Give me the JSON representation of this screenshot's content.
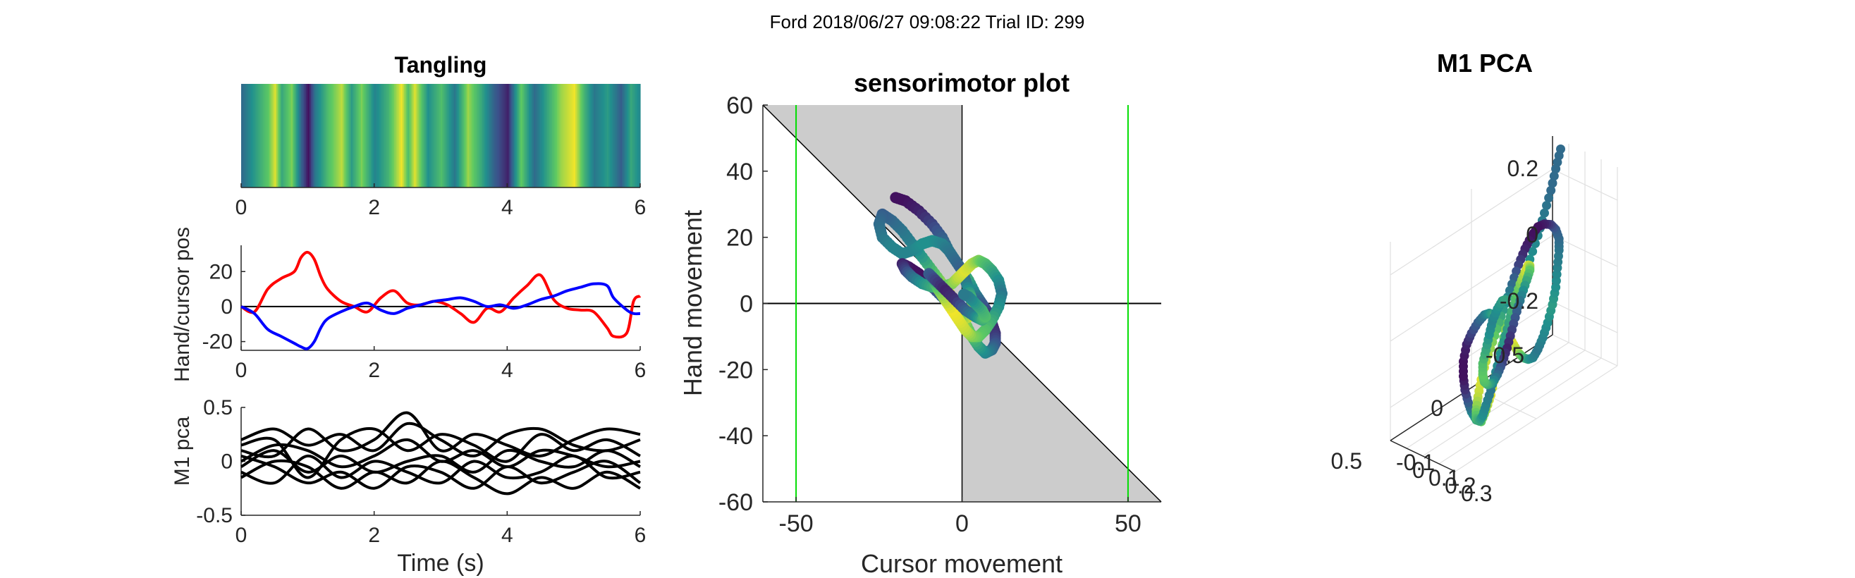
{
  "figure": {
    "suptitle": "Ford 2018/06/27 09:08:22 Trial ID: 299"
  },
  "colors": {
    "hand": "#ff0000",
    "cursor": "#0000ff",
    "target": "#00dd00",
    "shade": "#cccccc",
    "pca_line": "#000000",
    "viridis": [
      "#440154",
      "#3b528b",
      "#21908d",
      "#5dc963",
      "#fde725"
    ]
  },
  "chart_data": [
    {
      "id": "tangling",
      "type": "heatmap",
      "title": "Tangling",
      "xlim": [
        0,
        6
      ],
      "xticks": [
        "0",
        "2",
        "4",
        "6"
      ],
      "colormap": "viridis",
      "x": [
        0.0,
        0.2,
        0.4,
        0.5,
        0.6,
        0.75,
        0.9,
        1.0,
        1.1,
        1.3,
        1.5,
        1.65,
        1.8,
        2.0,
        2.2,
        2.4,
        2.5,
        2.6,
        2.8,
        3.0,
        3.2,
        3.4,
        3.6,
        3.8,
        4.0,
        4.1,
        4.2,
        4.4,
        4.6,
        4.8,
        5.0,
        5.15,
        5.3,
        5.5,
        5.7,
        5.85,
        6.0
      ],
      "values": [
        0.35,
        0.55,
        0.75,
        0.95,
        0.6,
        0.8,
        0.3,
        0.05,
        0.4,
        0.7,
        0.9,
        0.55,
        0.8,
        0.45,
        0.65,
        0.98,
        0.7,
        0.95,
        0.5,
        0.7,
        0.4,
        0.85,
        0.6,
        0.3,
        0.1,
        0.45,
        0.75,
        0.35,
        0.6,
        0.85,
        0.98,
        0.65,
        0.4,
        0.55,
        0.3,
        0.6,
        0.45
      ]
    },
    {
      "id": "handcursor",
      "type": "line",
      "ylabel": "Hand/cursor pos",
      "xlim": [
        0,
        6
      ],
      "ylim": [
        -25,
        35
      ],
      "xticks": [
        "0",
        "2",
        "4",
        "6"
      ],
      "yticks": [
        "-20",
        "0",
        "20"
      ],
      "x": [
        0,
        0.2,
        0.4,
        0.6,
        0.8,
        0.9,
        1.0,
        1.1,
        1.2,
        1.3,
        1.5,
        1.7,
        1.9,
        2.1,
        2.3,
        2.5,
        2.7,
        2.9,
        3.1,
        3.3,
        3.5,
        3.7,
        3.9,
        4.1,
        4.3,
        4.5,
        4.7,
        4.9,
        5.1,
        5.3,
        5.5,
        5.6,
        5.8,
        5.9,
        6.0
      ],
      "series": [
        {
          "key": "hand",
          "values": [
            0,
            -3,
            10,
            16,
            20,
            28,
            31,
            27,
            17,
            10,
            3,
            0,
            -3,
            5,
            9,
            2,
            1,
            3,
            1,
            -4,
            -9,
            -1,
            -3,
            5,
            12,
            18,
            4,
            -1,
            -2,
            -3,
            -12,
            -17,
            -15,
            3,
            6
          ]
        },
        {
          "key": "cursor",
          "values": [
            0,
            -4,
            -13,
            -17,
            -21,
            -23,
            -24,
            -20,
            -12,
            -7,
            -3,
            0,
            2,
            -2,
            -4,
            -1,
            1,
            3,
            4,
            5,
            3,
            0,
            1,
            -1,
            1,
            4,
            6,
            9,
            11,
            13,
            12,
            5,
            -2,
            -4,
            -4
          ]
        }
      ]
    },
    {
      "id": "m1pca",
      "type": "line",
      "xlabel": "Time (s)",
      "ylabel": "M1 pca",
      "xlim": [
        0,
        6
      ],
      "ylim": [
        -0.5,
        0.5
      ],
      "xticks": [
        "0",
        "2",
        "4",
        "6"
      ],
      "yticks": [
        "-0.5",
        "0",
        "0.5"
      ],
      "x": [
        0,
        0.5,
        1.0,
        1.5,
        2.0,
        2.5,
        3.0,
        3.5,
        4.0,
        4.5,
        5.0,
        5.5,
        6.0
      ],
      "series": [
        {
          "values": [
            0.2,
            0.3,
            0.15,
            0.25,
            0.1,
            0.35,
            0.2,
            0.05,
            0.25,
            0.3,
            0.15,
            0.1,
            0.2
          ]
        },
        {
          "values": [
            0.1,
            0.05,
            0.3,
            0.1,
            0.2,
            0.45,
            0.1,
            0.25,
            0.15,
            0.05,
            0.2,
            0.3,
            0.25
          ]
        },
        {
          "values": [
            0.0,
            0.15,
            0.1,
            -0.05,
            0.05,
            0.2,
            0.0,
            0.1,
            -0.05,
            0.1,
            0.05,
            -0.05,
            0.0
          ]
        },
        {
          "values": [
            -0.05,
            0.1,
            -0.1,
            0.05,
            -0.1,
            0.0,
            0.05,
            -0.1,
            0.1,
            0.0,
            -0.05,
            0.1,
            -0.05
          ]
        },
        {
          "values": [
            -0.1,
            -0.2,
            0.05,
            -0.15,
            0.0,
            -0.1,
            -0.2,
            0.0,
            -0.15,
            -0.1,
            0.05,
            -0.15,
            -0.1
          ]
        },
        {
          "values": [
            0.05,
            -0.05,
            -0.2,
            -0.1,
            -0.25,
            -0.05,
            -0.1,
            -0.25,
            -0.05,
            -0.2,
            -0.1,
            0.0,
            -0.2
          ]
        },
        {
          "values": [
            -0.15,
            0.0,
            -0.05,
            -0.25,
            -0.1,
            -0.2,
            0.0,
            -0.15,
            -0.3,
            -0.15,
            -0.25,
            -0.1,
            -0.25
          ]
        },
        {
          "values": [
            0.15,
            0.2,
            -0.15,
            0.2,
            0.3,
            0.1,
            0.25,
            0.15,
            0.0,
            0.25,
            0.1,
            0.2,
            0.05
          ]
        }
      ]
    },
    {
      "id": "sensorimotor",
      "type": "scatter",
      "title": "sensorimotor plot",
      "xlabel": "Cursor movement",
      "ylabel": "Hand movement",
      "xlim": [
        -60,
        60
      ],
      "ylim": [
        -60,
        60
      ],
      "xticks": [
        "-50",
        "0",
        "50"
      ],
      "yticks": [
        "-60",
        "-40",
        "-20",
        "0",
        "20",
        "40",
        "60"
      ],
      "target_lines_x": [
        -50,
        50
      ],
      "grid": false,
      "x": [
        -20,
        -17,
        -13,
        -9,
        -6,
        -4,
        -2,
        0,
        2,
        4,
        6,
        8,
        9,
        10,
        10,
        9,
        7,
        5,
        3,
        1,
        -1,
        -3,
        -6,
        -9,
        -12,
        -15,
        -18,
        -21,
        -24,
        -25,
        -24,
        -21,
        -18,
        -15,
        -12,
        -9,
        -6,
        -4,
        -2,
        0,
        1,
        2,
        3,
        3,
        2,
        0,
        -2,
        -4,
        -7,
        -10,
        -13,
        -16,
        -18,
        -17,
        -15,
        -12,
        -9,
        -6,
        -3,
        -1,
        1,
        3,
        5,
        7,
        9,
        11,
        12,
        11,
        9,
        7,
        5,
        3,
        1,
        -1,
        -3,
        -5,
        -7,
        -8,
        -9,
        -10,
        -8,
        -5,
        -2,
        1,
        4,
        6,
        7,
        6,
        4,
        2,
        0
      ],
      "y": [
        32,
        31,
        28,
        24,
        20,
        16,
        13,
        10,
        7,
        3,
        0,
        -3,
        -6,
        -9,
        -12,
        -14,
        -15,
        -13,
        -10,
        -6,
        -2,
        2,
        6,
        10,
        14,
        18,
        22,
        25,
        27,
        24,
        20,
        17,
        15,
        16,
        18,
        19,
        18,
        16,
        13,
        10,
        7,
        4,
        1,
        -2,
        -4,
        -5,
        -3,
        0,
        3,
        6,
        9,
        11,
        12,
        10,
        8,
        6,
        5,
        5,
        6,
        8,
        10,
        12,
        13,
        12,
        10,
        7,
        3,
        -1,
        -5,
        -8,
        -10,
        -10,
        -8,
        -5,
        -2,
        1,
        4,
        6,
        8,
        9,
        7,
        4,
        1,
        -2,
        -4,
        -5,
        -4,
        -2,
        0,
        2,
        3
      ],
      "c": [
        0.05,
        0.05,
        0.1,
        0.2,
        0.3,
        0.4,
        0.5,
        0.55,
        0.6,
        0.45,
        0.3,
        0.2,
        0.1,
        0.15,
        0.25,
        0.35,
        0.45,
        0.55,
        0.7,
        0.8,
        0.9,
        0.95,
        0.85,
        0.7,
        0.55,
        0.45,
        0.4,
        0.35,
        0.3,
        0.35,
        0.4,
        0.45,
        0.45,
        0.45,
        0.5,
        0.5,
        0.45,
        0.4,
        0.35,
        0.3,
        0.35,
        0.5,
        0.7,
        0.9,
        0.95,
        0.85,
        0.7,
        0.5,
        0.3,
        0.15,
        0.05,
        0.05,
        0.1,
        0.2,
        0.35,
        0.5,
        0.6,
        0.7,
        0.8,
        0.9,
        0.95,
        0.9,
        0.8,
        0.7,
        0.6,
        0.5,
        0.4,
        0.5,
        0.6,
        0.7,
        0.75,
        0.8,
        0.9,
        0.95,
        0.98,
        0.9,
        0.8,
        0.7,
        0.5,
        0.3,
        0.2,
        0.1,
        0.15,
        0.3,
        0.45,
        0.6,
        0.7,
        0.65,
        0.55,
        0.45,
        0.4
      ]
    },
    {
      "id": "pca3d",
      "type": "scatter",
      "title": "M1 PCA",
      "zticks": [
        "-0.2",
        "0",
        "0.2"
      ],
      "xticks": [
        "0.5",
        "0",
        "-0.5"
      ],
      "yticks": [
        "-0.1",
        "0",
        "0.1",
        "0.2",
        "0.3"
      ],
      "grid": true,
      "x": [
        -0.45,
        -0.42,
        -0.38,
        -0.33,
        -0.28,
        -0.22,
        -0.16,
        -0.1,
        -0.04,
        0.0,
        0.04,
        0.08,
        0.12,
        0.16,
        0.2,
        0.24,
        0.27,
        0.3,
        0.32,
        0.33,
        0.32,
        0.3,
        0.26,
        0.22,
        0.18,
        0.14,
        0.1,
        0.06,
        0.02,
        -0.02,
        -0.06,
        -0.1,
        -0.14,
        -0.18,
        -0.22,
        -0.26,
        -0.3,
        -0.34,
        -0.37,
        -0.39,
        -0.4,
        -0.39,
        -0.36,
        -0.32,
        -0.27,
        -0.22,
        -0.17,
        -0.12,
        -0.07,
        -0.02,
        0.03,
        0.08,
        0.13,
        0.18,
        0.22,
        0.25,
        0.27,
        0.28,
        0.27,
        0.25,
        0.22,
        0.18,
        0.14,
        0.1,
        0.06,
        0.02,
        -0.02,
        -0.06,
        -0.1,
        -0.13,
        -0.15,
        -0.16,
        -0.15,
        -0.13,
        -0.1,
        -0.06,
        -0.02,
        0.02,
        0.06,
        0.1,
        0.14,
        0.17,
        0.19,
        0.2,
        0.19,
        0.17,
        0.14,
        0.1,
        0.06,
        0.02
      ],
      "y": [
        0.0,
        0.0,
        0.01,
        0.02,
        0.03,
        0.04,
        0.05,
        0.06,
        0.07,
        0.08,
        0.09,
        0.1,
        0.11,
        0.12,
        0.13,
        0.14,
        0.15,
        0.16,
        0.17,
        0.18,
        0.19,
        0.2,
        0.2,
        0.2,
        0.19,
        0.18,
        0.17,
        0.16,
        0.15,
        0.14,
        0.13,
        0.12,
        0.11,
        0.1,
        0.09,
        0.08,
        0.07,
        0.06,
        0.05,
        0.04,
        0.04,
        0.05,
        0.06,
        0.07,
        0.08,
        0.09,
        0.1,
        0.11,
        0.12,
        0.13,
        0.14,
        0.15,
        0.16,
        0.17,
        0.18,
        0.19,
        0.2,
        0.21,
        0.22,
        0.22,
        0.21,
        0.2,
        0.19,
        0.18,
        0.17,
        0.16,
        0.15,
        0.14,
        0.13,
        0.12,
        0.11,
        0.1,
        0.09,
        0.08,
        0.08,
        0.09,
        0.1,
        0.11,
        0.12,
        0.13,
        0.14,
        0.15,
        0.16,
        0.17,
        0.18,
        0.18,
        0.17,
        0.16,
        0.15,
        0.14
      ],
      "z": [
        0.3,
        0.25,
        0.2,
        0.15,
        0.1,
        0.05,
        0.0,
        -0.05,
        -0.1,
        -0.15,
        -0.2,
        -0.25,
        -0.28,
        -0.3,
        -0.28,
        -0.24,
        -0.2,
        -0.15,
        -0.1,
        -0.05,
        0.0,
        0.03,
        0.05,
        0.06,
        0.05,
        0.03,
        0.0,
        -0.04,
        -0.08,
        -0.12,
        -0.16,
        -0.19,
        -0.21,
        -0.22,
        -0.21,
        -0.19,
        -0.16,
        -0.12,
        -0.08,
        -0.03,
        0.02,
        0.06,
        0.1,
        0.13,
        0.15,
        0.16,
        0.15,
        0.13,
        0.1,
        0.06,
        0.02,
        -0.02,
        -0.06,
        -0.1,
        -0.14,
        -0.18,
        -0.21,
        -0.23,
        -0.24,
        -0.23,
        -0.21,
        -0.18,
        -0.14,
        -0.1,
        -0.06,
        -0.02,
        0.02,
        0.05,
        0.07,
        0.08,
        0.07,
        0.05,
        0.02,
        -0.02,
        -0.06,
        -0.1,
        -0.14,
        -0.17,
        -0.19,
        -0.2,
        -0.19,
        -0.17,
        -0.14,
        -0.1,
        -0.06,
        -0.02,
        0.01,
        0.03,
        0.04,
        0.03
      ],
      "c": [
        0.35,
        0.35,
        0.35,
        0.4,
        0.45,
        0.5,
        0.55,
        0.6,
        0.7,
        0.8,
        0.9,
        0.95,
        0.85,
        0.75,
        0.6,
        0.45,
        0.3,
        0.15,
        0.05,
        0.05,
        0.1,
        0.2,
        0.3,
        0.4,
        0.5,
        0.6,
        0.7,
        0.8,
        0.9,
        0.95,
        0.85,
        0.7,
        0.55,
        0.45,
        0.4,
        0.45,
        0.5,
        0.55,
        0.5,
        0.45,
        0.4,
        0.35,
        0.3,
        0.2,
        0.1,
        0.05,
        0.05,
        0.1,
        0.2,
        0.35,
        0.5,
        0.65,
        0.8,
        0.9,
        0.95,
        0.9,
        0.8,
        0.7,
        0.6,
        0.5,
        0.45,
        0.4,
        0.45,
        0.5,
        0.55,
        0.6,
        0.7,
        0.8,
        0.9,
        0.95,
        0.9,
        0.75,
        0.6,
        0.45,
        0.3,
        0.2,
        0.1,
        0.2,
        0.35,
        0.5,
        0.6,
        0.7,
        0.75,
        0.7,
        0.6,
        0.5,
        0.45,
        0.5,
        0.55,
        0.6
      ]
    }
  ]
}
